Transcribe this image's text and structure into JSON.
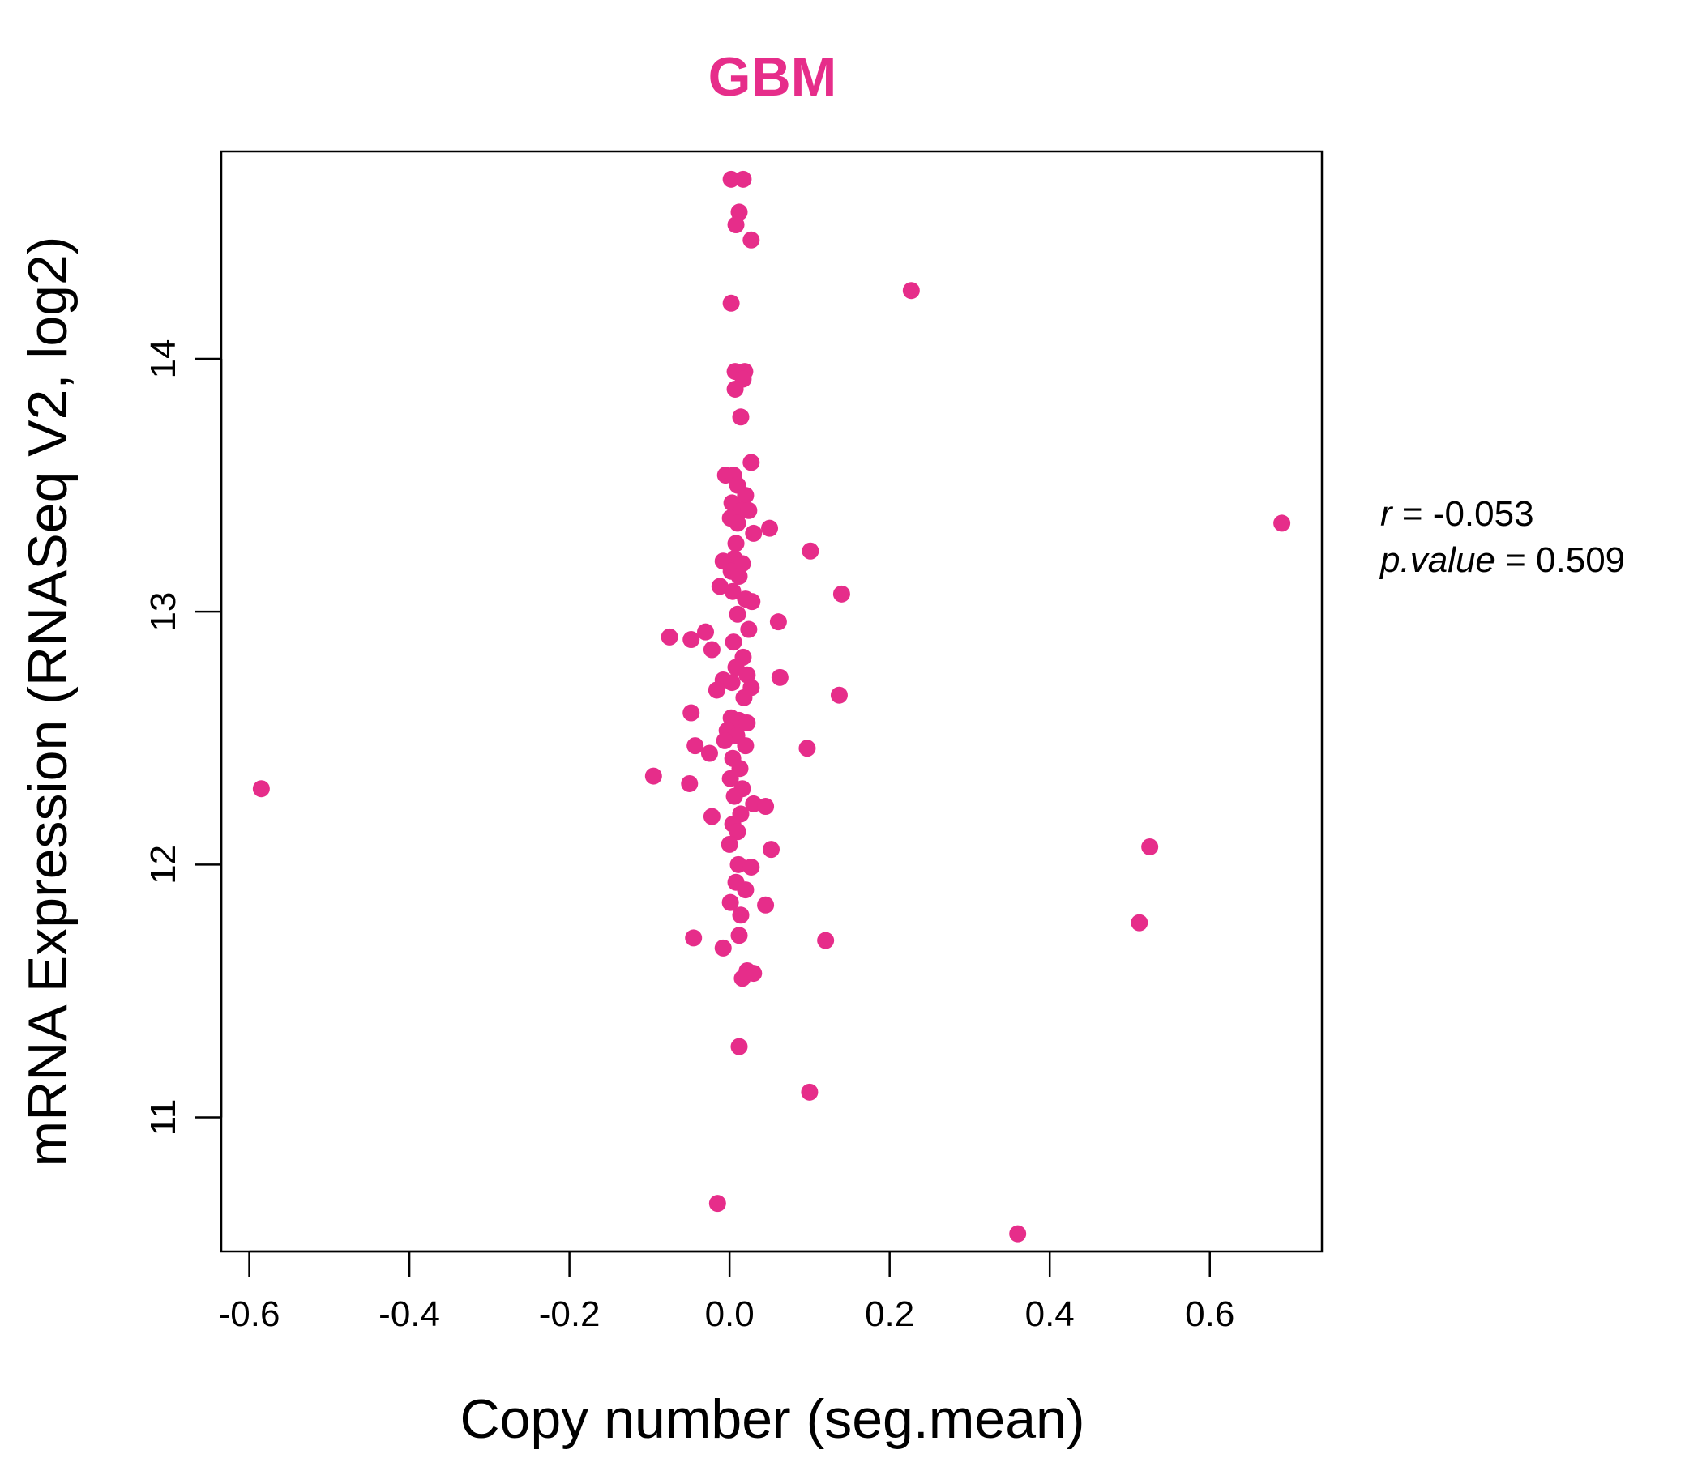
{
  "chart_data": {
    "type": "scatter",
    "title": "GBM",
    "xlabel": "Copy number (seg.mean)",
    "ylabel": "mRNA Expression (RNASeq V2, log2)",
    "xlim": [
      -0.635,
      0.74
    ],
    "ylim": [
      10.47,
      14.82
    ],
    "x_ticks": [
      -0.6,
      -0.4,
      -0.2,
      0.0,
      0.2,
      0.4,
      0.6
    ],
    "x_tick_labels": [
      "-0.6",
      "-0.4",
      "-0.2",
      "0.0",
      "0.2",
      "0.4",
      "0.6"
    ],
    "y_ticks": [
      11,
      12,
      13,
      14
    ],
    "y_tick_labels": [
      "11",
      "12",
      "13",
      "14"
    ],
    "grid": false,
    "legend": "none",
    "color": "#e62d8a",
    "stats": {
      "r_label": "r",
      "r_value": "-0.053",
      "p_label": "p.value",
      "p_value": "0.509"
    },
    "points": [
      {
        "x": -0.585,
        "y": 12.3
      },
      {
        "x": 0.002,
        "y": 14.71
      },
      {
        "x": 0.017,
        "y": 14.71
      },
      {
        "x": 0.012,
        "y": 14.58
      },
      {
        "x": 0.008,
        "y": 14.53
      },
      {
        "x": 0.027,
        "y": 14.47
      },
      {
        "x": 0.227,
        "y": 14.27
      },
      {
        "x": 0.002,
        "y": 14.22
      },
      {
        "x": 0.007,
        "y": 13.95
      },
      {
        "x": 0.019,
        "y": 13.95
      },
      {
        "x": 0.017,
        "y": 13.92
      },
      {
        "x": 0.007,
        "y": 13.88
      },
      {
        "x": 0.014,
        "y": 13.77
      },
      {
        "x": 0.027,
        "y": 13.59
      },
      {
        "x": -0.005,
        "y": 13.54
      },
      {
        "x": 0.005,
        "y": 13.54
      },
      {
        "x": 0.01,
        "y": 13.5
      },
      {
        "x": 0.02,
        "y": 13.46
      },
      {
        "x": 0.003,
        "y": 13.43
      },
      {
        "x": 0.015,
        "y": 13.4
      },
      {
        "x": 0.024,
        "y": 13.4
      },
      {
        "x": 0.001,
        "y": 13.37
      },
      {
        "x": 0.01,
        "y": 13.35
      },
      {
        "x": 0.05,
        "y": 13.33
      },
      {
        "x": 0.03,
        "y": 13.31
      },
      {
        "x": 0.69,
        "y": 13.35
      },
      {
        "x": 0.008,
        "y": 13.27
      },
      {
        "x": 0.101,
        "y": 13.24
      },
      {
        "x": 0.006,
        "y": 13.21
      },
      {
        "x": -0.008,
        "y": 13.2
      },
      {
        "x": 0.016,
        "y": 13.19
      },
      {
        "x": 0.002,
        "y": 13.16
      },
      {
        "x": 0.012,
        "y": 13.14
      },
      {
        "x": -0.012,
        "y": 13.1
      },
      {
        "x": 0.004,
        "y": 13.08
      },
      {
        "x": 0.14,
        "y": 13.07
      },
      {
        "x": 0.02,
        "y": 13.05
      },
      {
        "x": 0.028,
        "y": 13.04
      },
      {
        "x": 0.01,
        "y": 12.99
      },
      {
        "x": 0.061,
        "y": 12.96
      },
      {
        "x": 0.024,
        "y": 12.93
      },
      {
        "x": -0.03,
        "y": 12.92
      },
      {
        "x": -0.075,
        "y": 12.9
      },
      {
        "x": -0.048,
        "y": 12.89
      },
      {
        "x": 0.005,
        "y": 12.88
      },
      {
        "x": -0.022,
        "y": 12.85
      },
      {
        "x": 0.017,
        "y": 12.82
      },
      {
        "x": 0.008,
        "y": 12.78
      },
      {
        "x": 0.022,
        "y": 12.75
      },
      {
        "x": -0.008,
        "y": 12.73
      },
      {
        "x": 0.063,
        "y": 12.74
      },
      {
        "x": 0.003,
        "y": 12.72
      },
      {
        "x": 0.027,
        "y": 12.7
      },
      {
        "x": -0.016,
        "y": 12.69
      },
      {
        "x": 0.018,
        "y": 12.66
      },
      {
        "x": 0.137,
        "y": 12.67
      },
      {
        "x": -0.048,
        "y": 12.6
      },
      {
        "x": 0.002,
        "y": 12.58
      },
      {
        "x": 0.012,
        "y": 12.57
      },
      {
        "x": 0.022,
        "y": 12.56
      },
      {
        "x": -0.003,
        "y": 12.53
      },
      {
        "x": 0.009,
        "y": 12.51
      },
      {
        "x": -0.006,
        "y": 12.49
      },
      {
        "x": 0.02,
        "y": 12.47
      },
      {
        "x": -0.043,
        "y": 12.47
      },
      {
        "x": 0.097,
        "y": 12.46
      },
      {
        "x": -0.025,
        "y": 12.44
      },
      {
        "x": 0.004,
        "y": 12.42
      },
      {
        "x": 0.013,
        "y": 12.38
      },
      {
        "x": -0.095,
        "y": 12.35
      },
      {
        "x": 0.001,
        "y": 12.34
      },
      {
        "x": -0.05,
        "y": 12.32
      },
      {
        "x": 0.016,
        "y": 12.3
      },
      {
        "x": 0.006,
        "y": 12.27
      },
      {
        "x": 0.03,
        "y": 12.24
      },
      {
        "x": 0.045,
        "y": 12.23
      },
      {
        "x": 0.014,
        "y": 12.2
      },
      {
        "x": -0.022,
        "y": 12.19
      },
      {
        "x": 0.004,
        "y": 12.16
      },
      {
        "x": 0.01,
        "y": 12.13
      },
      {
        "x": 0.0,
        "y": 12.08
      },
      {
        "x": 0.052,
        "y": 12.06
      },
      {
        "x": 0.525,
        "y": 12.07
      },
      {
        "x": 0.011,
        "y": 12.0
      },
      {
        "x": 0.027,
        "y": 11.99
      },
      {
        "x": 0.008,
        "y": 11.93
      },
      {
        "x": 0.02,
        "y": 11.9
      },
      {
        "x": 0.001,
        "y": 11.85
      },
      {
        "x": 0.045,
        "y": 11.84
      },
      {
        "x": 0.014,
        "y": 11.8
      },
      {
        "x": 0.512,
        "y": 11.77
      },
      {
        "x": -0.045,
        "y": 11.71
      },
      {
        "x": 0.012,
        "y": 11.72
      },
      {
        "x": 0.12,
        "y": 11.7
      },
      {
        "x": -0.008,
        "y": 11.67
      },
      {
        "x": 0.022,
        "y": 11.58
      },
      {
        "x": 0.03,
        "y": 11.57
      },
      {
        "x": 0.016,
        "y": 11.55
      },
      {
        "x": 0.012,
        "y": 11.28
      },
      {
        "x": 0.1,
        "y": 11.1
      },
      {
        "x": -0.015,
        "y": 10.66
      },
      {
        "x": 0.36,
        "y": 10.54
      }
    ]
  }
}
